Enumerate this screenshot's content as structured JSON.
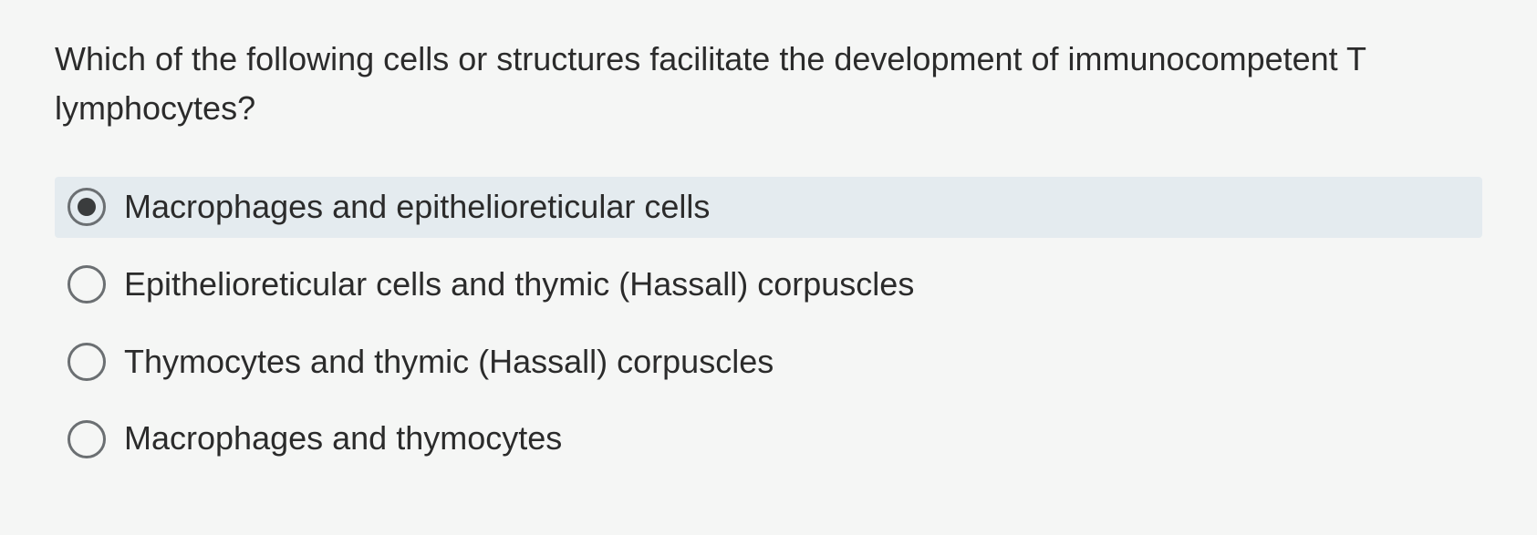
{
  "question": {
    "text": "Which of the following cells or structures facilitate the development of immunocompetent T lymphocytes?"
  },
  "options": [
    {
      "label": "Macrophages and epithelioreticular cells",
      "selected": true
    },
    {
      "label": "Epithelioreticular cells and thymic (Hassall) corpuscles",
      "selected": false
    },
    {
      "label": "Thymocytes and thymic (Hassall) corpuscles",
      "selected": false
    },
    {
      "label": "Macrophages and thymocytes",
      "selected": false
    }
  ],
  "colors": {
    "background": "#f5f6f5",
    "text": "#2b2b2b",
    "radio_border": "#6b6f72",
    "radio_fill": "#3a3c3d",
    "selected_bg": "#e4ebef"
  }
}
